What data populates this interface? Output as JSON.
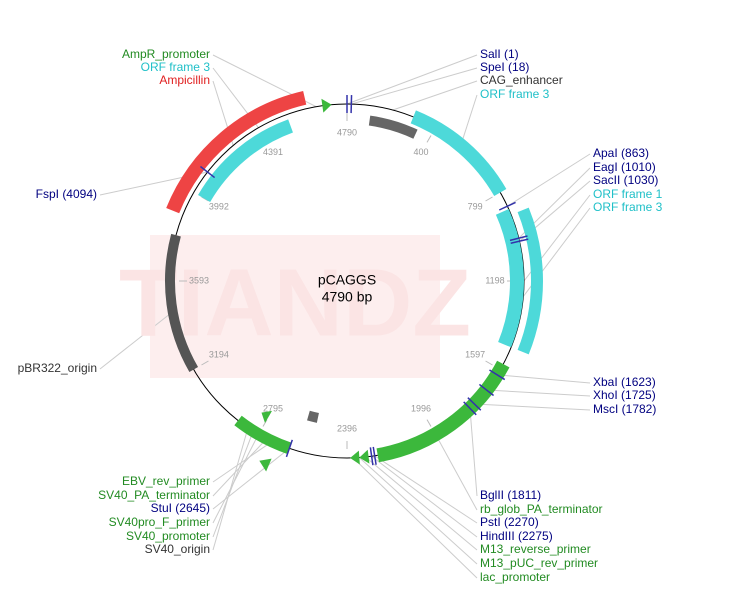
{
  "map": {
    "name": "pCAGGS",
    "size": "4790 bp",
    "watermark": "TIANDZ",
    "ticks": [
      "4790",
      "400",
      "799",
      "1198",
      "1597",
      "1996",
      "2396",
      "2795",
      "3194",
      "3593",
      "3992",
      "4391"
    ],
    "labels": [
      "AmpR_promoter",
      "ORF frame 3",
      "Ampicillin",
      "FspI (4094)",
      "pBR322_origin",
      "SalI (1)",
      "SpeI (18)",
      "CAG_enhancer",
      "ORF frame 3",
      "ApaI (863)",
      "EagI (1010)",
      "SacII (1030)",
      "ORF frame 1",
      "ORF frame 3",
      "XbaI (1623)",
      "XhoI (1725)",
      "MscI (1782)",
      "BglII (1811)",
      "rb_glob_PA_terminator",
      "PstI (2270)",
      "HindIII (2275)",
      "M13_reverse_primer",
      "M13_pUC_rev_primer",
      "lac_promoter",
      "EBV_rev_primer",
      "SV40_PA_terminator",
      "StuI (2645)",
      "SV40pro_F_primer",
      "SV40_promoter",
      "SV40_origin"
    ]
  }
}
